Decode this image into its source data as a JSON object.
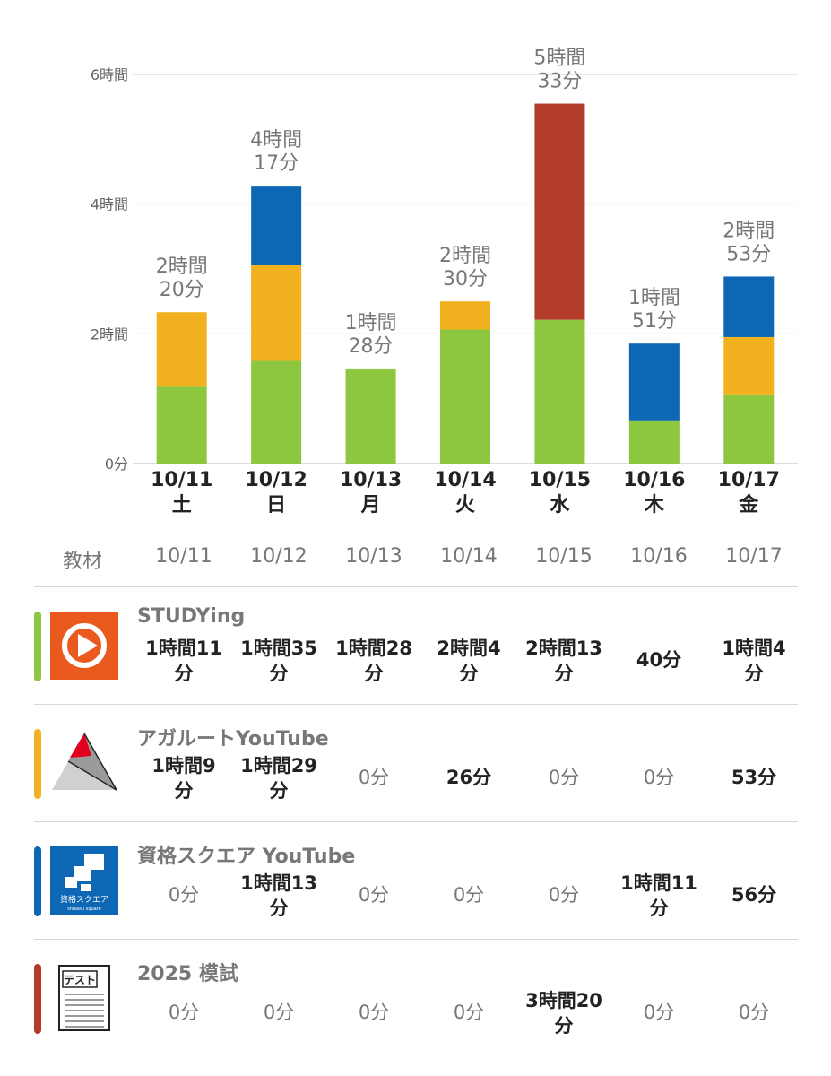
{
  "chart_data": {
    "type": "bar",
    "stacked": true,
    "categories": [
      "10/11",
      "10/12",
      "10/13",
      "10/14",
      "10/15",
      "10/16",
      "10/17"
    ],
    "weekdays": [
      "土",
      "日",
      "月",
      "火",
      "水",
      "木",
      "金"
    ],
    "y_ticks": [
      "0分",
      "2時間",
      "4時間",
      "6時間"
    ],
    "y_unit": "minutes",
    "ylim": [
      0,
      360
    ],
    "grid": true,
    "totals_labels": [
      [
        "2時間",
        "20分"
      ],
      [
        "4時間",
        "17分"
      ],
      [
        "1時間",
        "28分"
      ],
      [
        "2時間",
        "30分"
      ],
      [
        "5時間",
        "33分"
      ],
      [
        "1時間",
        "51分"
      ],
      [
        "2時間",
        "53分"
      ]
    ],
    "series": [
      {
        "color": "#8dc63f",
        "values": [
          71,
          95,
          88,
          124,
          133,
          40,
          64
        ]
      },
      {
        "color": "#f2b21f",
        "values": [
          69,
          89,
          0,
          26,
          0,
          0,
          53
        ]
      },
      {
        "color": "#0d67b5",
        "values": [
          0,
          73,
          0,
          0,
          0,
          71,
          56
        ]
      },
      {
        "color": "#b33b2a",
        "values": [
          0,
          0,
          0,
          0,
          200,
          0,
          0
        ]
      }
    ]
  },
  "table": {
    "header_label": "教材",
    "dates": [
      "10/11",
      "10/12",
      "10/13",
      "10/14",
      "10/15",
      "10/16",
      "10/17"
    ],
    "rows": [
      {
        "title": "STUDYing",
        "color": "#8dc63f",
        "icon": "studying-play-icon",
        "cells": [
          [
            "1時間11",
            "分"
          ],
          [
            "1時間35",
            "分"
          ],
          [
            "1時間28",
            "分"
          ],
          [
            "2時間4",
            "分"
          ],
          [
            "2時間13",
            "分"
          ],
          [
            "40分"
          ],
          [
            "1時間4",
            "分"
          ]
        ]
      },
      {
        "title": "アガルートYouTube",
        "color": "#f2b21f",
        "icon": "agaroot-triangle-icon",
        "cells": [
          [
            "1時間9",
            "分"
          ],
          [
            "1時間29",
            "分"
          ],
          [
            "0分"
          ],
          [
            "26分"
          ],
          [
            "0分"
          ],
          [
            "0分"
          ],
          [
            "53分"
          ]
        ]
      },
      {
        "title": "資格スクエア YouTube",
        "color": "#0d67b5",
        "icon": "shikaku-square-icon",
        "icon_text": "資格スクエア",
        "icon_subtext": "shikaku square",
        "cells": [
          [
            "0分"
          ],
          [
            "1時間13",
            "分"
          ],
          [
            "0分"
          ],
          [
            "0分"
          ],
          [
            "0分"
          ],
          [
            "1時間11",
            "分"
          ],
          [
            "56分"
          ]
        ]
      },
      {
        "title": "2025 模試",
        "color": "#b33b2a",
        "icon": "test-paper-icon",
        "icon_text": "テスト",
        "cells": [
          [
            "0分"
          ],
          [
            "0分"
          ],
          [
            "0分"
          ],
          [
            "0分"
          ],
          [
            "3時間20",
            "分"
          ],
          [
            "0分"
          ],
          [
            "0分"
          ]
        ]
      }
    ]
  }
}
